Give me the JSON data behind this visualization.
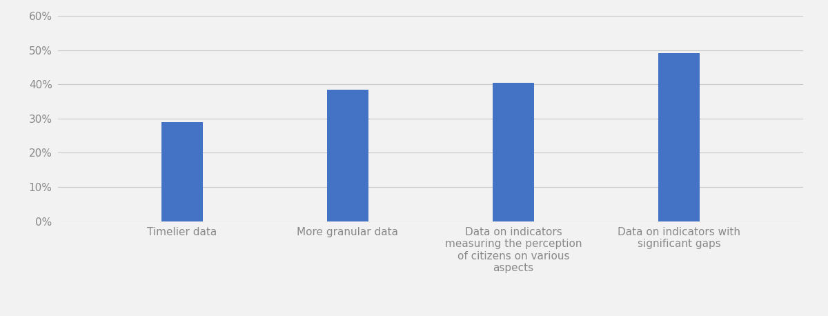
{
  "categories": [
    "Timelier data",
    "More granular data",
    "Data on indicators\nmeasuring the perception\nof citizens on various\naspects",
    "Data on indicators with\nsignificant gaps"
  ],
  "values": [
    0.29,
    0.385,
    0.405,
    0.49
  ],
  "bar_color": "#4472C4",
  "ylim": [
    0,
    0.6
  ],
  "yticks": [
    0.0,
    0.1,
    0.2,
    0.3,
    0.4,
    0.5,
    0.6
  ],
  "ytick_labels": [
    "0%",
    "10%",
    "20%",
    "30%",
    "40%",
    "50%",
    "60%"
  ],
  "background_color": "#f2f2f2",
  "grid_color": "#c8c8c8",
  "tick_label_fontsize": 11,
  "bar_width": 0.25
}
